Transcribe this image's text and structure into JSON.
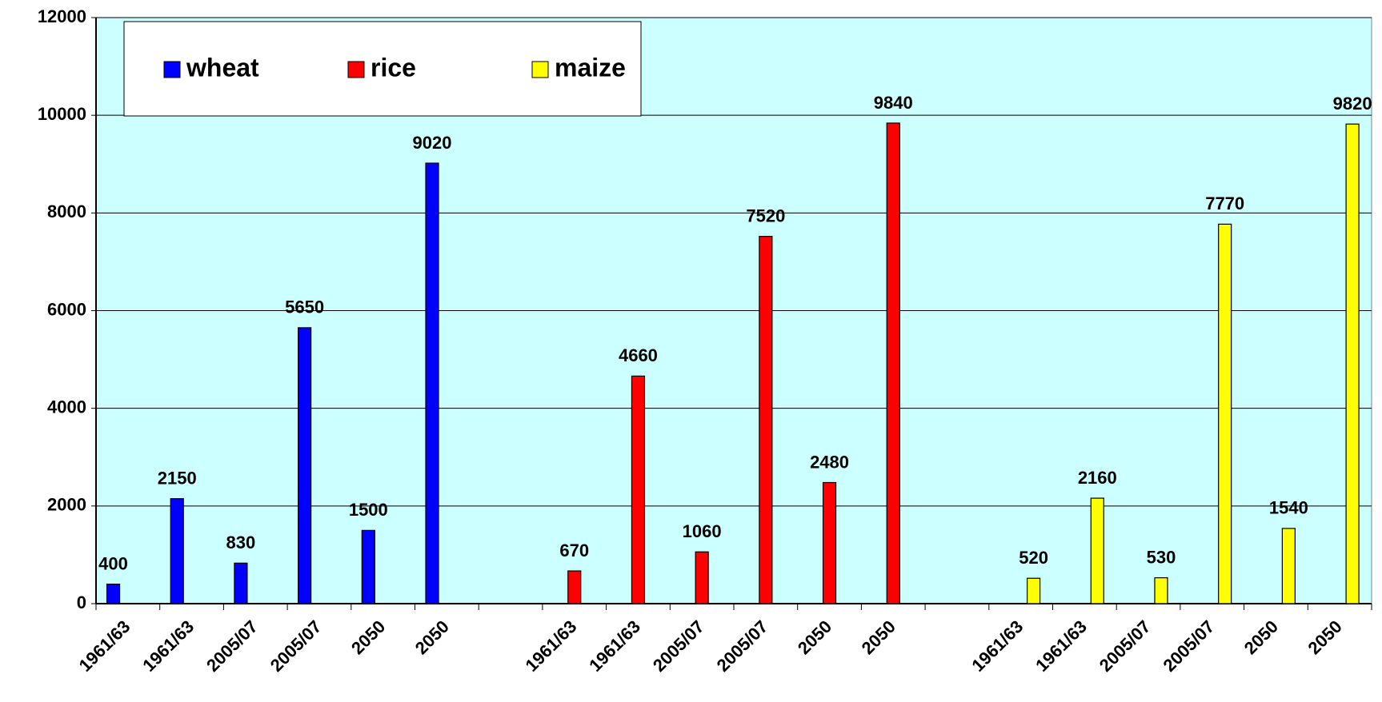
{
  "chart_data": {
    "type": "bar",
    "categories": [
      "1961/63",
      "1961/63",
      "2005/07",
      "2005/07",
      "2050",
      "2050",
      null,
      "1961/63",
      "1961/63",
      "2005/07",
      "2005/07",
      "2050",
      "2050",
      null,
      "1961/63",
      "1961/63",
      "2005/07",
      "2005/07",
      "2050",
      "2050"
    ],
    "series": [
      {
        "name": "wheat",
        "color": "#0000ff",
        "values": [
          400,
          2150,
          830,
          5650,
          1500,
          9020,
          null,
          null,
          null,
          null,
          null,
          null,
          null,
          null,
          null,
          null,
          null,
          null,
          null,
          null
        ]
      },
      {
        "name": "rice",
        "color": "#ff0000",
        "values": [
          null,
          null,
          null,
          null,
          null,
          null,
          null,
          670,
          4660,
          1060,
          7520,
          2480,
          9840,
          null,
          null,
          null,
          null,
          null,
          null,
          null
        ]
      },
      {
        "name": "maize",
        "color": "#ffff00",
        "values": [
          null,
          null,
          null,
          null,
          null,
          null,
          null,
          null,
          null,
          null,
          null,
          null,
          null,
          null,
          520,
          2160,
          530,
          7770,
          1540,
          9820
        ]
      }
    ],
    "ylim": [
      0,
      12000
    ],
    "yticks": [
      0,
      2000,
      4000,
      6000,
      8000,
      10000,
      12000
    ],
    "grid": true,
    "legend": "top-left"
  }
}
